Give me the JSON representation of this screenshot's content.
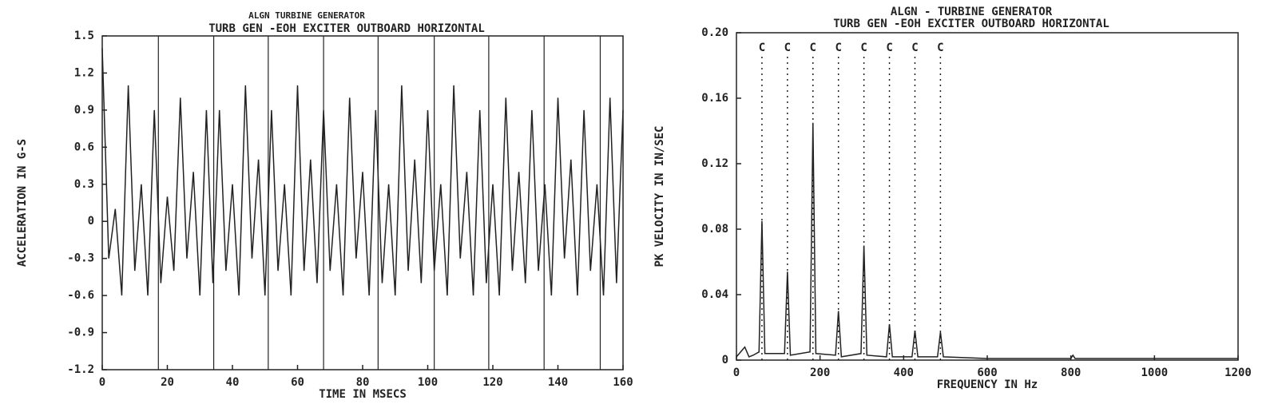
{
  "chart_data": [
    {
      "type": "line",
      "supertitle": "ALGN TURBINE GENERATOR",
      "title": "TURB GEN -EOH EXCITER OUTBOARD HORIZONTAL",
      "xlabel": "TIME IN MSECS",
      "ylabel": "ACCELERATION IN G-S",
      "xlim": [
        0,
        160
      ],
      "ylim": [
        -1.2,
        1.5
      ],
      "xticks": [
        0,
        20,
        40,
        60,
        80,
        100,
        120,
        140,
        160
      ],
      "yticks": [
        1.5,
        1.2,
        0.9,
        0.6,
        0.3,
        0,
        -0.3,
        -0.6,
        -0.9,
        -1.2
      ],
      "markers": [
        17.25,
        34.25,
        51,
        68,
        84.75,
        102,
        118.75,
        135.75,
        153
      ],
      "color": "#222",
      "x": [
        0,
        2,
        4,
        6,
        8,
        10,
        12,
        14,
        16,
        18,
        20,
        22,
        24,
        26,
        28,
        30,
        32,
        34,
        36,
        38,
        40,
        42,
        44,
        46,
        48,
        50,
        52,
        54,
        56,
        58,
        60,
        62,
        64,
        66,
        68,
        70,
        72,
        74,
        76,
        78,
        80,
        82,
        84,
        86,
        88,
        90,
        92,
        94,
        96,
        98,
        100,
        102,
        104,
        106,
        108,
        110,
        112,
        114,
        116,
        118,
        120,
        122,
        124,
        126,
        128,
        130,
        132,
        134,
        136,
        138,
        140,
        142,
        144,
        146,
        148,
        150,
        152,
        154,
        156,
        158,
        160
      ],
      "values": [
        1.4,
        -0.3,
        0.1,
        -0.6,
        1.1,
        -0.4,
        0.3,
        -0.6,
        0.9,
        -0.5,
        0.2,
        -0.4,
        1.0,
        -0.3,
        0.4,
        -0.6,
        0.9,
        -0.5,
        0.9,
        -0.4,
        0.3,
        -0.6,
        1.1,
        -0.3,
        0.5,
        -0.6,
        0.9,
        -0.4,
        0.3,
        -0.6,
        1.1,
        -0.4,
        0.5,
        -0.5,
        0.9,
        -0.4,
        0.3,
        -0.6,
        1.0,
        -0.3,
        0.4,
        -0.6,
        0.9,
        -0.5,
        0.3,
        -0.6,
        1.1,
        -0.4,
        0.5,
        -0.5,
        0.9,
        -0.4,
        0.3,
        -0.6,
        1.1,
        -0.3,
        0.4,
        -0.6,
        0.9,
        -0.5,
        0.3,
        -0.6,
        1.0,
        -0.4,
        0.4,
        -0.5,
        0.9,
        -0.4,
        0.3,
        -0.6,
        1.0,
        -0.3,
        0.5,
        -0.6,
        0.9,
        -0.4,
        0.3,
        -0.6,
        1.0,
        -0.5,
        0.9
      ]
    },
    {
      "type": "line",
      "supertitle": "ALGN - TURBINE GENERATOR",
      "title": "TURB GEN -EOH EXCITER OUTBOARD HORIZONTAL",
      "xlabel": "FREQUENCY IN Hz",
      "ylabel": "PK VELOCITY IN IN/SEC",
      "xlim": [
        0,
        1200
      ],
      "ylim": [
        0,
        0.2
      ],
      "xticks": [
        0,
        200,
        400,
        600,
        800,
        1000,
        1200
      ],
      "yticks": [
        {
          "value": 0.2,
          "label": "0.20"
        },
        0.16,
        0.12,
        0.08,
        0.04,
        0
      ],
      "markers": [
        61,
        122,
        183,
        244,
        305,
        366,
        427,
        488
      ],
      "marker_label": "C",
      "color": "#222",
      "x": [
        0,
        20,
        30,
        40,
        54,
        61,
        68,
        115,
        122,
        129,
        176,
        183,
        190,
        237,
        244,
        251,
        298,
        305,
        312,
        359,
        366,
        373,
        420,
        427,
        434,
        481,
        488,
        495,
        600,
        800,
        805,
        810,
        1200
      ],
      "values": [
        0.002,
        0.008,
        0.002,
        0.003,
        0.005,
        0.085,
        0.004,
        0.004,
        0.054,
        0.003,
        0.005,
        0.145,
        0.004,
        0.003,
        0.03,
        0.002,
        0.004,
        0.07,
        0.003,
        0.002,
        0.022,
        0.002,
        0.002,
        0.018,
        0.002,
        0.002,
        0.017,
        0.002,
        0.001,
        0.001,
        0.003,
        0.001,
        0.001
      ]
    }
  ]
}
